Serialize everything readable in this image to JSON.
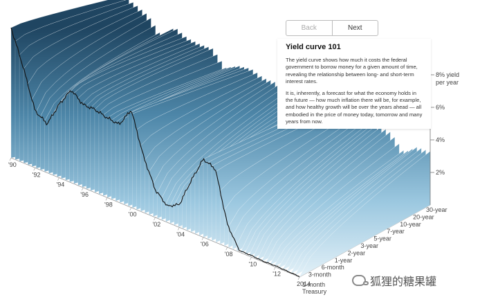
{
  "nav": {
    "back_label": "Back",
    "next_label": "Next"
  },
  "panel": {
    "title": "Yield curve 101",
    "paragraph1": "The yield curve shows how much it costs the federal government to borrow money for a given amount of time, revealing the relationship between long- and short-term interest rates.",
    "paragraph2": "It is, inherently, a forecast for what the economy holds in the future — how much inflation there will be, for example, and how healthy growth will be over the years ahead — all embodied in the price of money today, tomorrow and many years from now."
  },
  "watermark": {
    "text": "狐狸的糖果罐",
    "icon": "chat-bubbles-icon"
  },
  "colors": {
    "surface_dark": "#1f4561",
    "surface_light": "#d6eaf5",
    "short_rate_line": "#111111"
  },
  "chart_data": {
    "type": "surface",
    "title": "",
    "year_ticks": [
      "'90",
      "'92",
      "'94",
      "'96",
      "'98",
      "'00",
      "'02",
      "'04",
      "'06",
      "'08",
      "'10",
      "'12",
      "2014"
    ],
    "maturity_ticks": [
      "1-month",
      "3-month",
      "6-month",
      "1-year",
      "2-year",
      "3-year",
      "5-year",
      "7-year",
      "10-year",
      "20-year",
      "30-year"
    ],
    "maturity_caption": "Treasury",
    "rate_ticks": [
      "2%",
      "4%",
      "6%",
      "8% yield"
    ],
    "rate_unit": "per year",
    "zlim": [
      0,
      8.5
    ],
    "short_rate_series": {
      "x": [
        1990,
        1991,
        1992,
        1993,
        1994,
        1995,
        1996,
        1997,
        1998,
        1999,
        2000,
        2001,
        2002,
        2003,
        2004,
        2005,
        2006,
        2007,
        2008,
        2009,
        2010,
        2011,
        2012,
        2013,
        2014
      ],
      "y": [
        8.0,
        5.9,
        3.5,
        3.0,
        4.5,
        5.7,
        5.1,
        5.1,
        4.9,
        4.8,
        6.0,
        3.5,
        1.7,
        1.0,
        1.4,
        3.2,
        4.8,
        4.5,
        1.4,
        0.1,
        0.1,
        0.05,
        0.08,
        0.05,
        0.03
      ]
    },
    "long_rate_series": {
      "x": [
        1990,
        1991,
        1992,
        1993,
        1994,
        1995,
        1996,
        1997,
        1998,
        1999,
        2000,
        2001,
        2002,
        2003,
        2004,
        2005,
        2006,
        2007,
        2008,
        2009,
        2010,
        2011,
        2012,
        2013,
        2014
      ],
      "y": [
        8.6,
        8.2,
        7.7,
        6.6,
        7.4,
        6.9,
        6.7,
        6.6,
        5.6,
        5.9,
        5.9,
        5.5,
        5.4,
        5.0,
        5.0,
        4.6,
        4.9,
        4.8,
        4.3,
        4.1,
        4.2,
        3.9,
        2.9,
        3.4,
        3.3
      ]
    }
  }
}
